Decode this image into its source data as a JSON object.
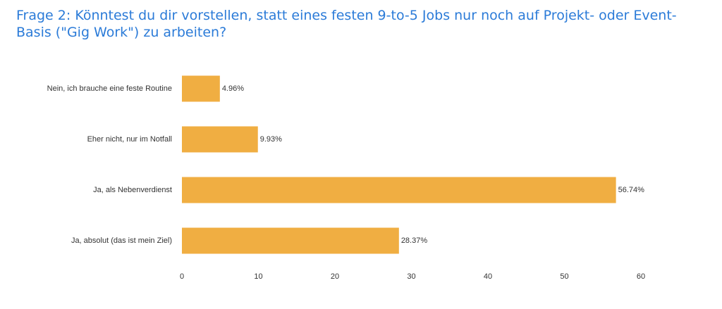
{
  "chart_data": {
    "type": "bar",
    "orientation": "horizontal",
    "title": "Frage 2: Könntest du dir vorstellen, statt eines festen 9-to-5 Jobs nur noch auf Projekt- oder Event-Basis (\"Gig Work\") zu arbeiten?",
    "categories": [
      "Nein, ich brauche eine feste Routine",
      "Eher nicht, nur im Notfall",
      "Ja, als Nebenverdienst",
      "Ja, absolut (das ist mein Ziel)"
    ],
    "values": [
      4.96,
      9.93,
      56.74,
      28.37
    ],
    "data_labels": [
      "4.96%",
      "9.93%",
      "56.74%",
      "28.37%"
    ],
    "xlim": [
      0,
      60
    ],
    "ticks": [
      0,
      10,
      20,
      30,
      40,
      50,
      60
    ],
    "grid": false,
    "colors": {
      "bar": "#f0ae42",
      "title": "#2b7bd8"
    }
  }
}
